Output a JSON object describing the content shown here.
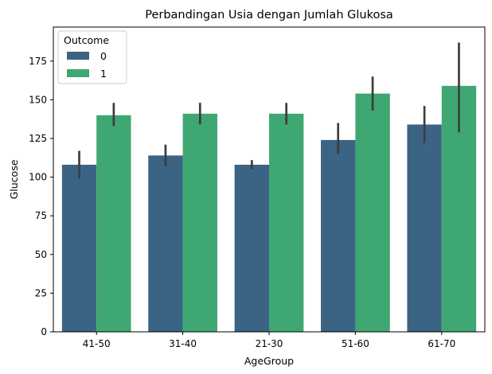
{
  "chart_data": {
    "type": "bar",
    "title": "Perbandingan Usia dengan Jumlah Glukosa",
    "xlabel": "AgeGroup",
    "ylabel": "Glucose",
    "categories": [
      "41-50",
      "31-40",
      "21-30",
      "51-60",
      "61-70"
    ],
    "ylim": [
      0,
      197
    ],
    "yticks": [
      0,
      25,
      50,
      75,
      100,
      125,
      150,
      175
    ],
    "grid": false,
    "legend": {
      "title": "Outcome",
      "placement": "top-left"
    },
    "series": [
      {
        "name": "0",
        "color": "#3b6384",
        "values": [
          108,
          114,
          108,
          124,
          134
        ],
        "ci": [
          [
            99,
            117
          ],
          [
            107,
            121
          ],
          [
            105,
            111
          ],
          [
            115,
            135
          ],
          [
            122,
            146
          ]
        ]
      },
      {
        "name": "1",
        "color": "#3fa772",
        "values": [
          140,
          141,
          141,
          154,
          159
        ],
        "ci": [
          [
            133,
            148
          ],
          [
            134,
            148
          ],
          [
            134,
            148
          ],
          [
            143,
            165
          ],
          [
            129,
            187
          ]
        ]
      }
    ],
    "errorbar_color": "#3d3d3d"
  }
}
